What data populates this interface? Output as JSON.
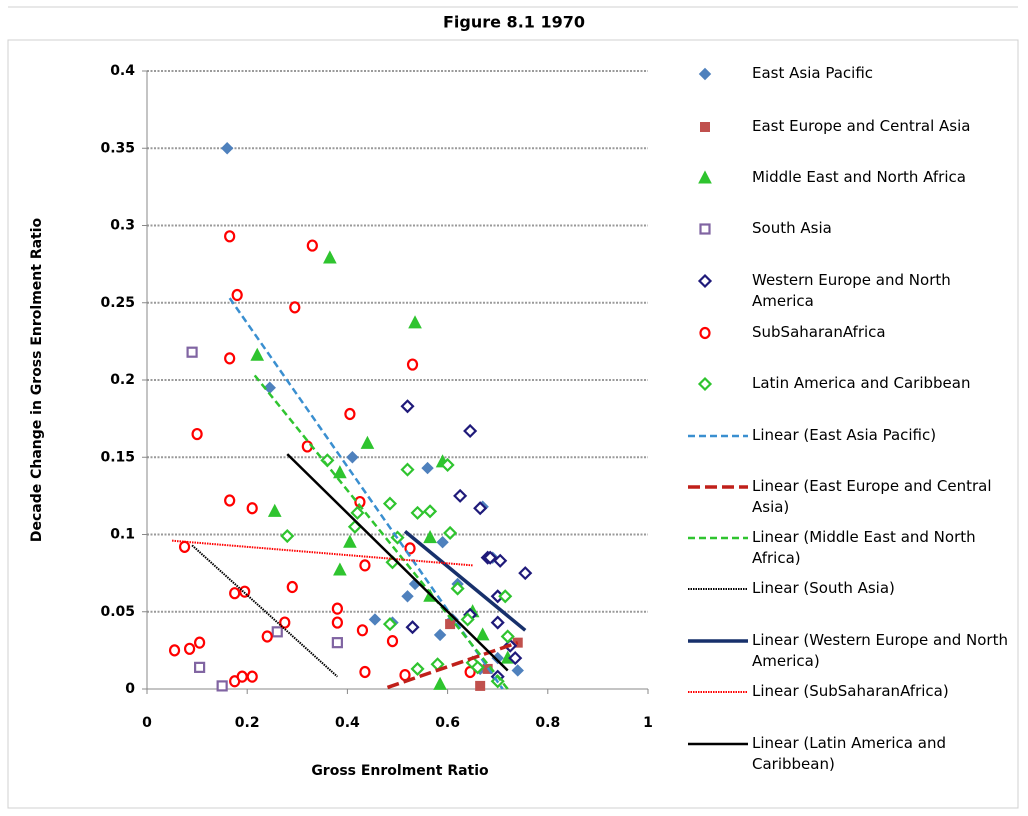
{
  "chart_data": {
    "type": "scatter",
    "title": "Figure 8.1 1970",
    "x_label": "Gross Enrolment Ratio",
    "y_label": "Decade Change in Gross Enrolment Ratio",
    "xlim": [
      0,
      1
    ],
    "xticks": [
      0,
      0.2,
      0.4,
      0.6,
      0.8,
      1
    ],
    "ylim": [
      0,
      0.4
    ],
    "yticks": [
      0,
      0.05,
      0.1,
      0.15,
      0.2,
      0.25,
      0.3,
      0.35,
      0.4
    ],
    "grid": true,
    "legend": "right",
    "series": [
      {
        "name": "East Asia Pacific",
        "color": "#4f81bd",
        "marker": "diamond-filled",
        "x": [
          0.16,
          0.245,
          0.41,
          0.56,
          0.59,
          0.52,
          0.535,
          0.455,
          0.49,
          0.585,
          0.61,
          0.62,
          0.67,
          0.69,
          0.7,
          0.74,
          0.665
        ],
        "values": [
          0.35,
          0.195,
          0.15,
          0.143,
          0.095,
          0.06,
          0.068,
          0.045,
          0.043,
          0.035,
          0.045,
          0.068,
          0.118,
          0.085,
          0.02,
          0.012,
          0.013
        ]
      },
      {
        "name": "East Europe and Central Asia",
        "color": "#c0504d",
        "marker": "square-filled",
        "x": [
          0.605,
          0.665,
          0.74,
          0.68
        ],
        "values": [
          0.042,
          0.002,
          0.03,
          0.013
        ]
      },
      {
        "name": "Middle East and North Africa",
        "color": "#2fc42f",
        "marker": "triangle-filled",
        "x": [
          0.22,
          0.255,
          0.365,
          0.385,
          0.385,
          0.405,
          0.44,
          0.535,
          0.565,
          0.565,
          0.59,
          0.585,
          0.65,
          0.67,
          0.72
        ],
        "values": [
          0.216,
          0.115,
          0.279,
          0.077,
          0.14,
          0.095,
          0.159,
          0.237,
          0.098,
          0.06,
          0.147,
          0.003,
          0.05,
          0.035,
          0.02
        ]
      },
      {
        "name": "South Asia",
        "color": "#8064a2",
        "marker": "square-open",
        "x": [
          0.09,
          0.105,
          0.15,
          0.26,
          0.38
        ],
        "values": [
          0.218,
          0.014,
          0.002,
          0.037,
          0.03
        ]
      },
      {
        "name": "Western Europe and North America",
        "color": "#1f1a7a",
        "marker": "diamond-open",
        "x": [
          0.52,
          0.53,
          0.625,
          0.645,
          0.645,
          0.665,
          0.68,
          0.685,
          0.7,
          0.7,
          0.705,
          0.7,
          0.725,
          0.735,
          0.755
        ],
        "values": [
          0.183,
          0.04,
          0.125,
          0.048,
          0.167,
          0.117,
          0.085,
          0.085,
          0.043,
          0.06,
          0.083,
          0.008,
          0.028,
          0.02,
          0.075
        ]
      },
      {
        "name": "SubSaharanAfrica",
        "color": "#ff0000",
        "marker": "circle-open",
        "x": [
          0.055,
          0.075,
          0.085,
          0.105,
          0.1,
          0.165,
          0.165,
          0.165,
          0.175,
          0.175,
          0.18,
          0.19,
          0.195,
          0.21,
          0.21,
          0.24,
          0.275,
          0.29,
          0.295,
          0.32,
          0.33,
          0.38,
          0.38,
          0.405,
          0.425,
          0.43,
          0.435,
          0.435,
          0.49,
          0.515,
          0.525,
          0.53,
          0.645
        ],
        "values": [
          0.025,
          0.092,
          0.026,
          0.03,
          0.165,
          0.122,
          0.214,
          0.293,
          0.062,
          0.005,
          0.255,
          0.008,
          0.063,
          0.008,
          0.117,
          0.034,
          0.043,
          0.066,
          0.247,
          0.157,
          0.287,
          0.043,
          0.052,
          0.178,
          0.121,
          0.038,
          0.011,
          0.08,
          0.031,
          0.009,
          0.091,
          0.21,
          0.011
        ]
      },
      {
        "name": "Latin America and Caribbean",
        "color": "#2fc42f",
        "marker": "diamond-open",
        "x": [
          0.28,
          0.36,
          0.415,
          0.42,
          0.485,
          0.485,
          0.49,
          0.5,
          0.52,
          0.54,
          0.54,
          0.565,
          0.58,
          0.6,
          0.605,
          0.62,
          0.64,
          0.65,
          0.66,
          0.7,
          0.72,
          0.715
        ],
        "values": [
          0.099,
          0.148,
          0.105,
          0.114,
          0.12,
          0.042,
          0.082,
          0.098,
          0.142,
          0.114,
          0.013,
          0.115,
          0.016,
          0.145,
          0.101,
          0.065,
          0.045,
          0.017,
          0.014,
          0.005,
          0.034,
          0.06
        ]
      }
    ],
    "trendlines": [
      {
        "name": "Linear (East Asia Pacific)",
        "color": "#3a8fd0",
        "style": "dashed",
        "x": [
          0.165,
          0.71
        ],
        "values": [
          0.253,
          0
        ]
      },
      {
        "name": "Linear (East Europe and Central Asia)",
        "color": "#c0201a",
        "style": "dashed-thick",
        "x": [
          0.48,
          0.74
        ],
        "values": [
          0.001,
          0.03
        ]
      },
      {
        "name": "Linear (Middle East and North Africa)",
        "color": "#2fc42f",
        "style": "dashed",
        "x": [
          0.215,
          0.72
        ],
        "values": [
          0.203,
          0
        ]
      },
      {
        "name": "Linear (South Asia)",
        "color": "#000000",
        "style": "dotted",
        "x": [
          0.09,
          0.38
        ],
        "values": [
          0.093,
          0.008
        ]
      },
      {
        "name": "Linear (Western Europe and North America)",
        "color": "#17306b",
        "style": "solid-thick",
        "x": [
          0.515,
          0.755
        ],
        "values": [
          0.102,
          0.038
        ]
      },
      {
        "name": "Linear (SubSaharanAfrica)",
        "color": "#ff0000",
        "style": "dotted",
        "x": [
          0.05,
          0.65
        ],
        "values": [
          0.096,
          0.08
        ]
      },
      {
        "name": "Linear (Latin America and Caribbean)",
        "color": "#000000",
        "style": "solid",
        "x": [
          0.28,
          0.72
        ],
        "values": [
          0.152,
          0.012
        ]
      }
    ]
  }
}
